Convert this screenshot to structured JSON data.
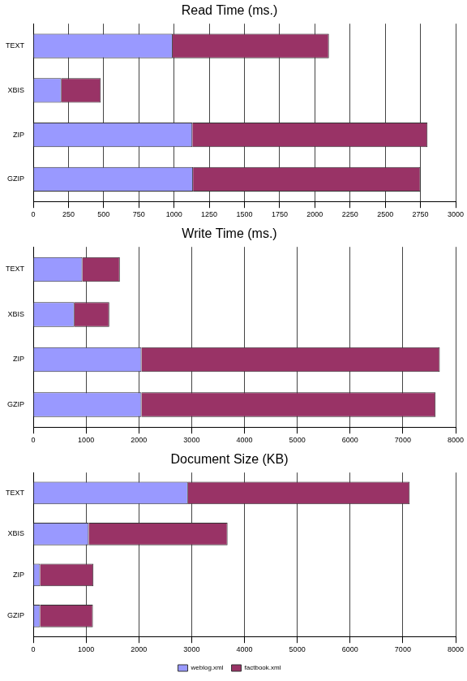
{
  "chart_data": [
    {
      "type": "bar",
      "title": "Read Time (ms.)",
      "orientation": "horizontal",
      "stacked": true,
      "grid": true,
      "categories": [
        "TEXT",
        "XBIS",
        "ZIP",
        "GZIP"
      ],
      "series": [
        {
          "name": "weblog.xml",
          "color": "#9999ff",
          "values": [
            990,
            200,
            1130,
            1135
          ]
        },
        {
          "name": "factbook.xml",
          "color": "#993366",
          "values": [
            1110,
            280,
            1670,
            1615
          ]
        }
      ],
      "xlim": [
        0,
        3000
      ],
      "xticks": [
        0,
        250,
        500,
        750,
        1000,
        1250,
        1500,
        1750,
        2000,
        2250,
        2500,
        2750,
        3000
      ]
    },
    {
      "type": "bar",
      "title": "Write Time (ms.)",
      "orientation": "horizontal",
      "stacked": true,
      "grid": true,
      "categories": [
        "TEXT",
        "XBIS",
        "ZIP",
        "GZIP"
      ],
      "series": [
        {
          "name": "weblog.xml",
          "color": "#9999ff",
          "values": [
            930,
            780,
            2050,
            2050
          ]
        },
        {
          "name": "factbook.xml",
          "color": "#993366",
          "values": [
            710,
            660,
            5650,
            5570
          ]
        }
      ],
      "xlim": [
        0,
        8000
      ],
      "xticks": [
        0,
        1000,
        2000,
        3000,
        4000,
        5000,
        6000,
        7000,
        8000
      ]
    },
    {
      "type": "bar",
      "title": "Document Size (KB)",
      "orientation": "horizontal",
      "stacked": true,
      "grid": true,
      "legend": "bottom",
      "categories": [
        "TEXT",
        "XBIS",
        "ZIP",
        "GZIP"
      ],
      "series": [
        {
          "name": "weblog.xml",
          "color": "#9999ff",
          "values": [
            2930,
            1050,
            130,
            130
          ]
        },
        {
          "name": "factbook.xml",
          "color": "#993366",
          "values": [
            4200,
            2630,
            1010,
            1000
          ]
        }
      ],
      "xlim": [
        0,
        8000
      ],
      "xticks": [
        0,
        1000,
        2000,
        3000,
        4000,
        5000,
        6000,
        7000,
        8000
      ]
    }
  ]
}
